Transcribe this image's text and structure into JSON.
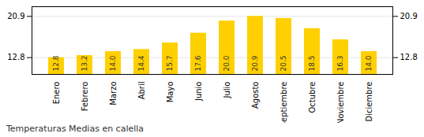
{
  "chart_data": {
    "type": "bar",
    "title": "Temperaturas Medias en calella",
    "categories": [
      "Enero",
      "Febrero",
      "Marzo",
      "Abril",
      "Mayo",
      "Junio",
      "Julio",
      "Agosto",
      "Septiembre",
      "Octubre",
      "Noviembre",
      "Diciembre"
    ],
    "values": [
      12.8,
      13.2,
      14.0,
      14.4,
      15.7,
      17.6,
      20.0,
      20.9,
      20.5,
      18.5,
      16.3,
      14.0
    ],
    "value_labels": [
      "12.8",
      "13.2",
      "14.0",
      "14.4",
      "15.7",
      "17.6",
      "20.0",
      "20.9",
      "20.5",
      "18.5",
      "16.3",
      "14.0"
    ],
    "data_labels": true,
    "color": "#FFD000",
    "ylim": [
      9.5,
      22.8
    ],
    "yticks": [
      12.8,
      20.9
    ],
    "grid": true
  }
}
